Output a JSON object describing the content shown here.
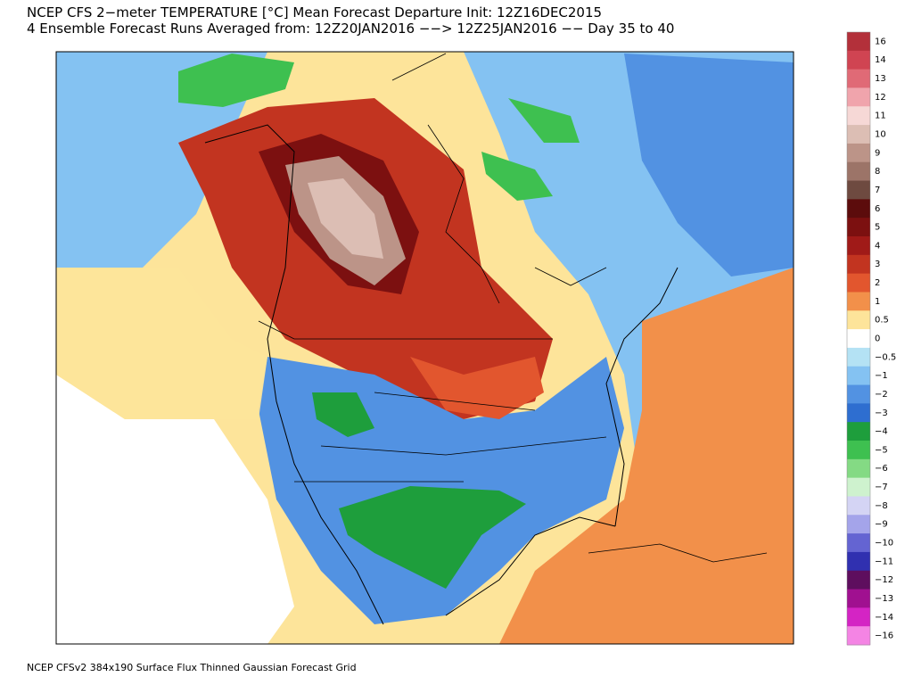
{
  "header": {
    "title_line_1": "NCEP CFS 2−meter TEMPERATURE [°C] Mean Forecast Departure Init: 12Z16DEC2015",
    "title_line_2": "4 Ensemble Forecast Runs Averaged from: 12Z20JAN2016 −−> 12Z25JAN2016 −− Day 35 to 40"
  },
  "legend": [
    {
      "label": "16",
      "color": "#b3303a"
    },
    {
      "label": "14",
      "color": "#d04452"
    },
    {
      "label": "13",
      "color": "#e06a76"
    },
    {
      "label": "12",
      "color": "#f0a4ac"
    },
    {
      "label": "11",
      "color": "#f6d8d6"
    },
    {
      "label": "10",
      "color": "#dcbeb4"
    },
    {
      "label": "9",
      "color": "#bc9488"
    },
    {
      "label": "8",
      "color": "#9c7468"
    },
    {
      "label": "7",
      "color": "#6e4a40"
    },
    {
      "label": "6",
      "color": "#5c0c0c"
    },
    {
      "label": "5",
      "color": "#7c1010"
    },
    {
      "label": "4",
      "color": "#a01a18"
    },
    {
      "label": "3",
      "color": "#c23420"
    },
    {
      "label": "2",
      "color": "#e2562e"
    },
    {
      "label": "1",
      "color": "#f2904a"
    },
    {
      "label": "0.5",
      "color": "#fde49a"
    },
    {
      "label": "0",
      "color": "#ffffff"
    },
    {
      "label": "−0.5",
      "color": "#b4e2f4"
    },
    {
      "label": "−1",
      "color": "#84c2f2"
    },
    {
      "label": "−2",
      "color": "#5292e2"
    },
    {
      "label": "−3",
      "color": "#2e6ed0"
    },
    {
      "label": "−4",
      "color": "#1e9e3c"
    },
    {
      "label": "−5",
      "color": "#3ec050"
    },
    {
      "label": "−6",
      "color": "#84da84"
    },
    {
      "label": "−7",
      "color": "#cef2ce"
    },
    {
      "label": "−8",
      "color": "#d4d4f4"
    },
    {
      "label": "−9",
      "color": "#a4a4ea"
    },
    {
      "label": "−10",
      "color": "#6464d2"
    },
    {
      "label": "−11",
      "color": "#3030b0"
    },
    {
      "label": "−12",
      "color": "#5e0e5e"
    },
    {
      "label": "−13",
      "color": "#a01090"
    },
    {
      "label": "−14",
      "color": "#d424c4"
    },
    {
      "label": "−16",
      "color": "#f484e4"
    }
  ],
  "footer": "NCEP CFSv2 384x190 Surface Flux Thinned Gaussian Forecast Grid"
}
